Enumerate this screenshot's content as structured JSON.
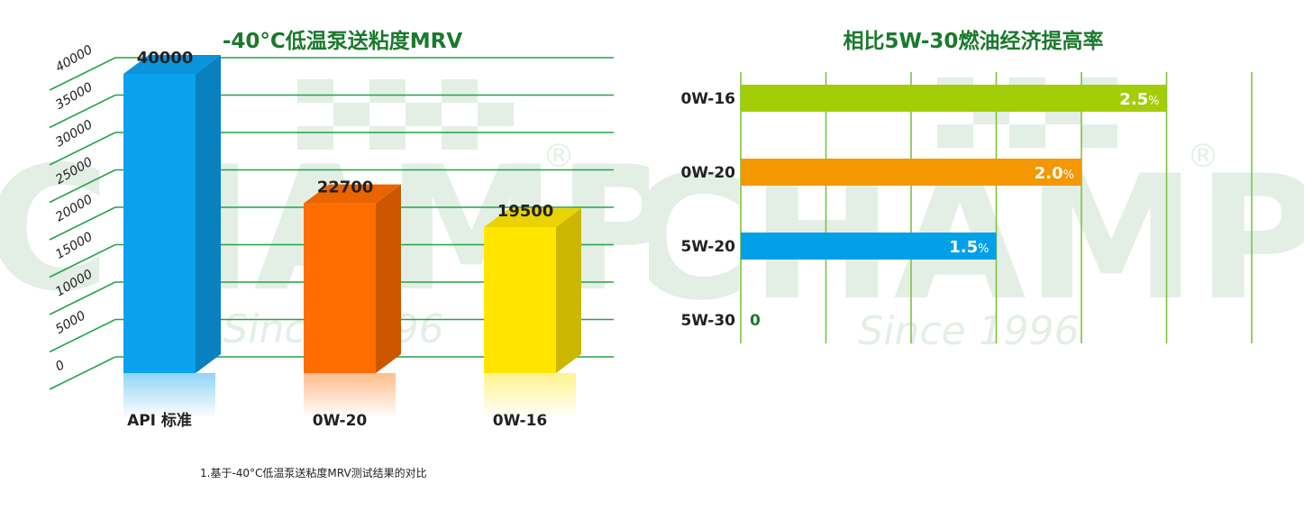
{
  "chart_data": [
    {
      "type": "bar",
      "title": "-40°C低温泵送粘度MRV",
      "categories": [
        "API 标准",
        "0W-20",
        "0W-16"
      ],
      "values": [
        40000,
        22700,
        19500
      ],
      "value_labels": [
        "40000",
        "22700",
        "19500"
      ],
      "colors": [
        "#0aa1ee",
        "#ff6d00",
        "#ffe500"
      ],
      "ylim": [
        0,
        40000
      ],
      "yticks": [
        "0",
        "5000",
        "10000",
        "15000",
        "20000",
        "25000",
        "30000",
        "35000",
        "40000"
      ],
      "grid": true,
      "grid_color": "#22a447",
      "footnote": "1.基于-40°C低温泵送粘度MRV测试结果的对比"
    },
    {
      "type": "bar",
      "orientation": "horizontal",
      "title": "相比5W-30燃油经济提高率",
      "categories": [
        "0W-16",
        "0W-20",
        "5W-20",
        "5W-30"
      ],
      "values": [
        2.5,
        2.0,
        1.5,
        0
      ],
      "value_labels": [
        "2.5",
        "2.0",
        "1.5",
        "0"
      ],
      "unit": "%",
      "colors": [
        "#a3cd07",
        "#f39800",
        "#02a0e9",
        "#1a7a2c"
      ],
      "xlim": [
        0,
        3
      ],
      "grid": true,
      "grid_color": "#7fc241"
    }
  ],
  "watermark": {
    "brand": "CHAMP",
    "registered": "®",
    "tagline": "Since 1996"
  },
  "colors": {
    "title": "#1a7a2c",
    "label": "#222222"
  }
}
